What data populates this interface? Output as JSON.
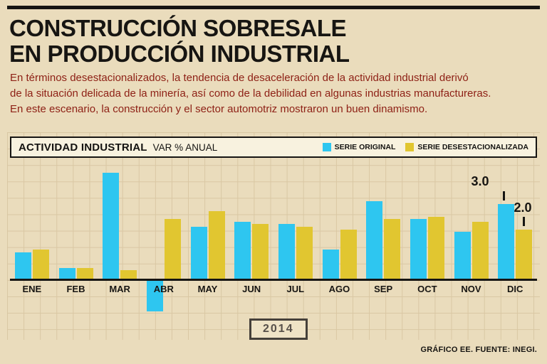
{
  "page": {
    "title_line1": "CONSTRUCCIÓN SOBRESALE",
    "title_line2": "EN PRODUCCIÓN INDUSTRIAL",
    "intro_lines": [
      "En términos desestacionalizados, la tendencia de desaceleración de la actividad industrial derivó",
      "de la situación delicada de la minería, así como de la debilidad en algunas industrias manufactureras.",
      "En este escenario, la construcción y el sector automotriz mostraron un buen dinamismo."
    ],
    "footer": "GRÁFICO EE. FUENTE: INEGI."
  },
  "chart_header": {
    "title": "ACTIVIDAD INDUSTRIAL",
    "subtitle": "VAR % ANUAL"
  },
  "period_label": "2014",
  "chart_data": {
    "type": "bar",
    "title": "ACTIVIDAD INDUSTRIAL VAR % ANUAL",
    "xlabel": "2014",
    "ylabel": "VAR % ANUAL",
    "ylim": [
      -1.5,
      4.7
    ],
    "grid": true,
    "legend_position": "top",
    "categories": [
      "ENE",
      "FEB",
      "MAR",
      "ABR",
      "MAY",
      "JUN",
      "JUL",
      "AGO",
      "SEP",
      "OCT",
      "NOV",
      "DIC"
    ],
    "series": [
      {
        "name": "SERIE ORIGINAL",
        "color": "#2ec6f0",
        "values": [
          1.1,
          0.5,
          4.2,
          -1.2,
          2.1,
          2.3,
          2.2,
          1.2,
          3.1,
          2.4,
          1.9,
          3.0
        ]
      },
      {
        "name": "SERIE DESESTACIONALIZADA",
        "color": "#e1c630",
        "values": [
          1.2,
          0.5,
          0.4,
          2.4,
          2.7,
          2.2,
          2.1,
          2.0,
          2.4,
          2.5,
          2.3,
          2.0
        ]
      }
    ],
    "annotations": [
      {
        "text": "3.0",
        "series": "SERIE ORIGINAL",
        "category": "DIC",
        "value": 3.0
      },
      {
        "text": "2.0",
        "series": "SERIE DESESTACIONALIZADA",
        "category": "DIC",
        "value": 2.0
      }
    ]
  }
}
